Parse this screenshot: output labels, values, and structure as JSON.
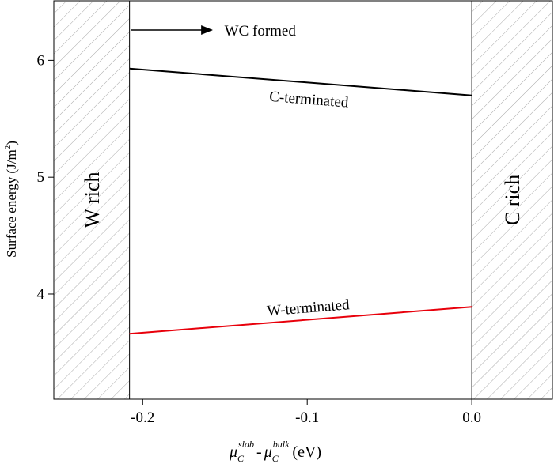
{
  "chart_data": {
    "type": "line",
    "x_label": {
      "mu": "μ",
      "sub1": "C",
      "sup1": "slab",
      "dash": "-",
      "mu2": "μ",
      "sub2": "C",
      "sup2": "bulk",
      "unit": "(eV)"
    },
    "y_label": {
      "main": "Surface energy (J/m",
      "sup": "2",
      "end": ")"
    },
    "xlim": [
      -0.254,
      0.049
    ],
    "ylim": [
      3.1,
      6.51
    ],
    "xticks": [
      -0.2,
      -0.1,
      {
        "value": 0,
        "label": "0.0"
      }
    ],
    "yticks": [
      4,
      5,
      6
    ],
    "regions": [
      {
        "label": "W rich",
        "x": [
          -0.254,
          -0.208
        ]
      },
      {
        "label": "C rich",
        "x": [
          0,
          0.049
        ]
      }
    ],
    "x": [
      -0.208,
      0
    ],
    "series": [
      {
        "name": "C-terminated",
        "color": "#000000",
        "values": [
          5.93,
          5.7
        ]
      },
      {
        "name": "W-terminated",
        "color": "#e8000b",
        "values": [
          3.66,
          3.89
        ]
      }
    ],
    "annotation": "WC formed"
  }
}
